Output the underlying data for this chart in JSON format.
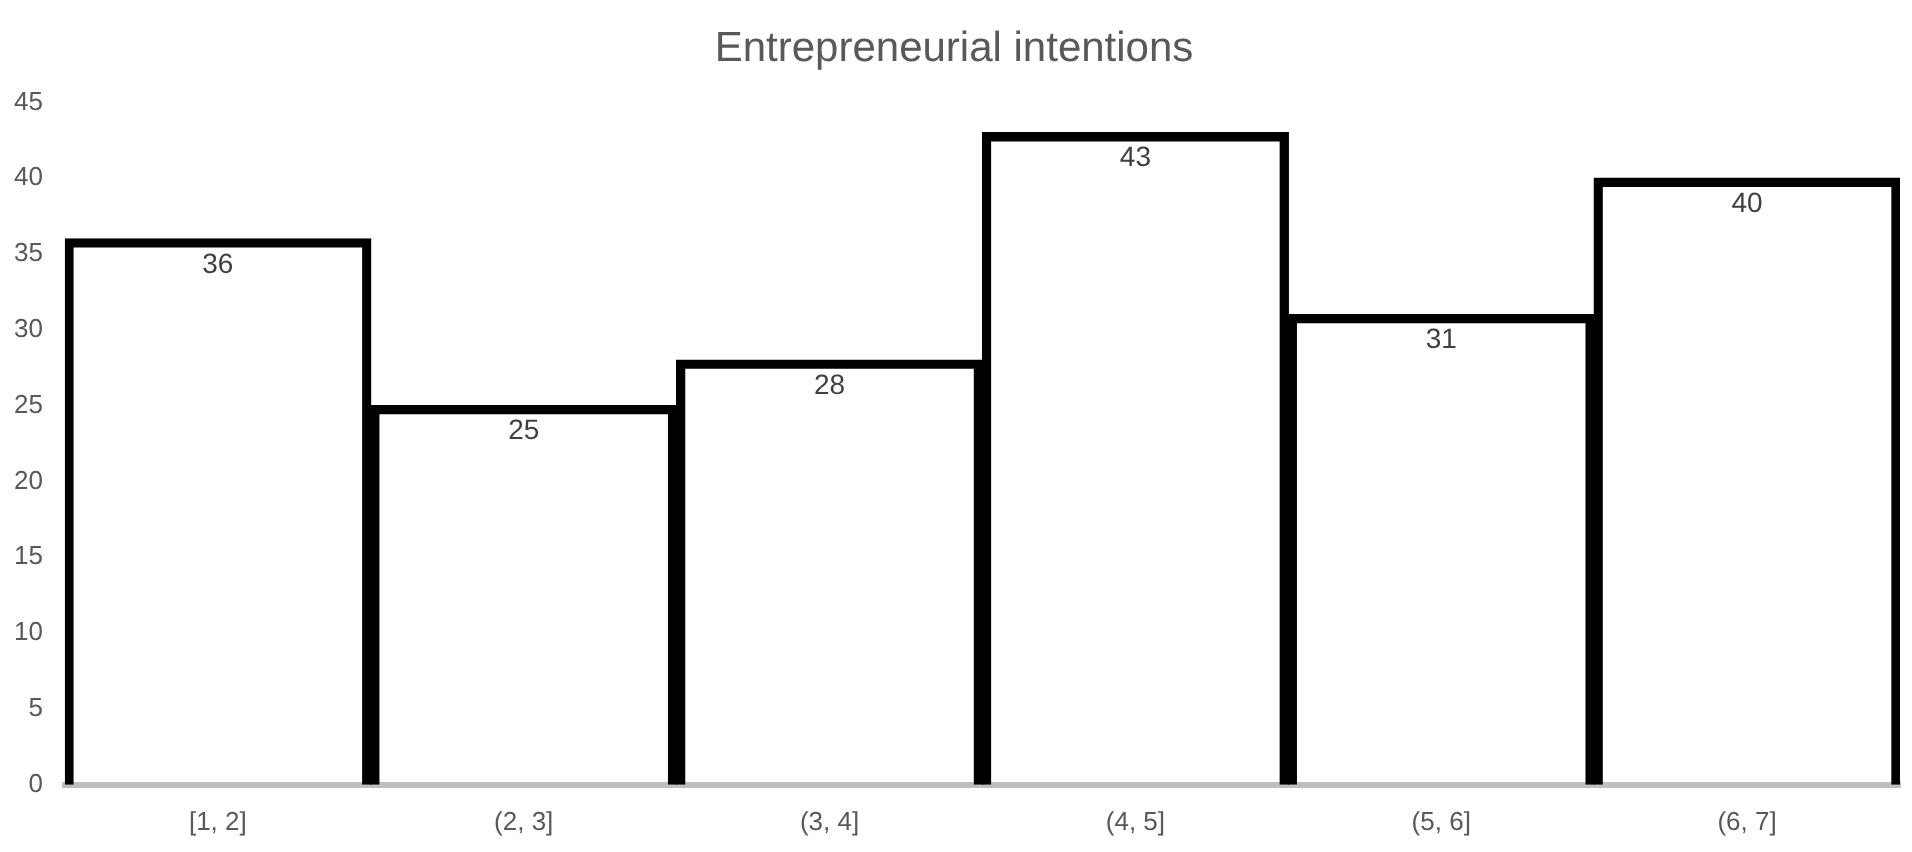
{
  "chart_data": {
    "type": "bar",
    "title": "Entrepreneurial intentions",
    "categories": [
      "[1, 2]",
      "(2, 3]",
      "(3, 4]",
      "(4, 5]",
      "(5, 6]",
      "(6, 7]"
    ],
    "values": [
      36,
      25,
      28,
      43,
      31,
      40
    ],
    "color": "#000000",
    "ylim": [
      0,
      45
    ],
    "yticks": [
      0,
      5,
      10,
      15,
      20,
      25,
      30,
      35,
      40,
      45
    ],
    "grid": false,
    "legend": false,
    "data_labels": true
  }
}
